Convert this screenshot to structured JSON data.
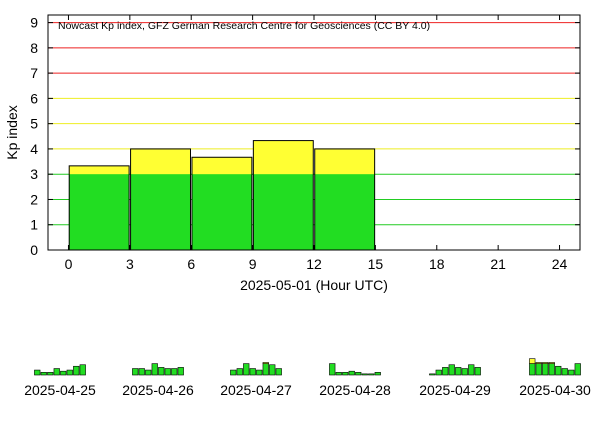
{
  "colors": {
    "background": "#ffffff",
    "bar_green": "#22dd22",
    "bar_yellow": "#ffff33",
    "bar_outline": "#000000",
    "grid_red": "#ee2222",
    "grid_yellow": "#eeee22",
    "grid_green": "#22cc22"
  },
  "chart_data": {
    "type": "bar",
    "title": "Nowcast Kp index, GFZ German Research Centre for Geosciences (CC BY 4.0)",
    "ylabel": "Kp index",
    "xlabel": "2025-05-01 (Hour UTC)",
    "x_ticks": [
      "0",
      "3",
      "6",
      "9",
      "12",
      "15",
      "18",
      "21",
      "24"
    ],
    "y_ticks": [
      "0",
      "1",
      "2",
      "3",
      "4",
      "5",
      "6",
      "7",
      "8",
      "9"
    ],
    "xlim": [
      -1,
      25
    ],
    "ylim": [
      0,
      9.3
    ],
    "grid": {
      "red": [
        7,
        8,
        9
      ],
      "yellow": [
        4,
        5,
        6
      ],
      "green": [
        1,
        2,
        3
      ]
    },
    "bars": [
      {
        "start": 0,
        "end": 3,
        "value": 3.33
      },
      {
        "start": 3,
        "end": 6,
        "value": 4.0
      },
      {
        "start": 6,
        "end": 9,
        "value": 3.67
      },
      {
        "start": 9,
        "end": 12,
        "value": 4.33
      },
      {
        "start": 12,
        "end": 15,
        "value": 4.0
      }
    ],
    "history": [
      {
        "date": "2025-04-25",
        "values": [
          1.3,
          0.7,
          0.7,
          1.7,
          1.0,
          1.3,
          2.3,
          2.7
        ]
      },
      {
        "date": "2025-04-26",
        "values": [
          1.7,
          1.7,
          1.3,
          3.0,
          2.0,
          1.7,
          1.7,
          2.0
        ]
      },
      {
        "date": "2025-04-27",
        "values": [
          1.3,
          1.7,
          3.0,
          1.7,
          1.3,
          3.3,
          2.7,
          1.7
        ]
      },
      {
        "date": "2025-04-28",
        "values": [
          3.0,
          0.7,
          0.7,
          1.0,
          0.7,
          0.3,
          0.3,
          0.7
        ]
      },
      {
        "date": "2025-04-29",
        "values": [
          0.3,
          1.3,
          2.0,
          2.7,
          2.0,
          1.7,
          2.7,
          2.0
        ]
      },
      {
        "date": "2025-04-30",
        "values": [
          4.3,
          3.3,
          3.3,
          3.3,
          2.3,
          1.7,
          1.3,
          3.0
        ]
      }
    ]
  }
}
